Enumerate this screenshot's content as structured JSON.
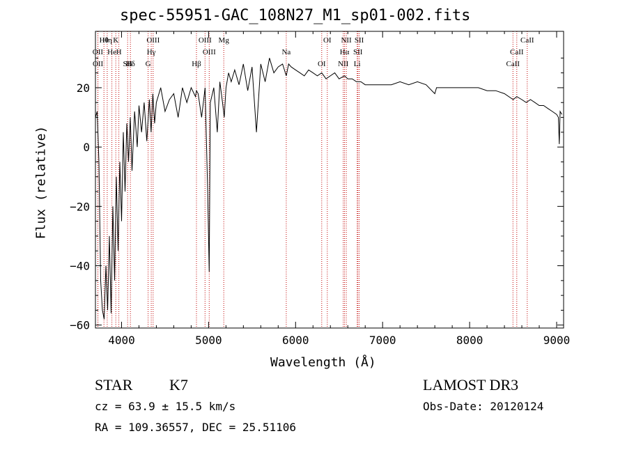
{
  "chart_data": {
    "type": "line",
    "title": "spec-55951-GAC_108N27_M1_sp01-002.fits",
    "xlabel": "Wavelength (Å)",
    "ylabel": "Flux (relative)",
    "xlim": [
      3700,
      9080
    ],
    "ylim": [
      -61,
      39
    ],
    "xticks": [
      4000,
      5000,
      6000,
      7000,
      8000,
      9000
    ],
    "yticks": [
      -60,
      -40,
      -20,
      0,
      20
    ],
    "series": [
      {
        "name": "flux",
        "x": [
          3700,
          3720,
          3740,
          3760,
          3780,
          3800,
          3820,
          3840,
          3860,
          3880,
          3900,
          3920,
          3940,
          3960,
          3980,
          4000,
          4020,
          4040,
          4060,
          4080,
          4100,
          4120,
          4150,
          4180,
          4200,
          4230,
          4260,
          4290,
          4320,
          4340,
          4360,
          4380,
          4400,
          4450,
          4500,
          4550,
          4600,
          4650,
          4700,
          4750,
          4800,
          4850,
          4861,
          4880,
          4920,
          4960,
          4990,
          5007,
          5020,
          5060,
          5100,
          5130,
          5160,
          5180,
          5200,
          5230,
          5260,
          5300,
          5350,
          5400,
          5450,
          5500,
          5550,
          5600,
          5650,
          5700,
          5750,
          5800,
          5850,
          5893,
          5920,
          5950,
          6000,
          6050,
          6100,
          6150,
          6200,
          6250,
          6300,
          6350,
          6400,
          6450,
          6500,
          6563,
          6600,
          6650,
          6700,
          6750,
          6800,
          6900,
          7000,
          7100,
          7200,
          7300,
          7400,
          7500,
          7600,
          7620,
          7650,
          7700,
          7800,
          7900,
          8000,
          8100,
          8200,
          8300,
          8400,
          8500,
          8542,
          8600,
          8650,
          8700,
          8750,
          8800,
          8850,
          8900,
          8950,
          9000,
          9020,
          9030,
          9040,
          9060
        ],
        "values": [
          10,
          12,
          -5,
          -45,
          -55,
          -58,
          -40,
          -55,
          -30,
          -56,
          -20,
          -45,
          -10,
          -35,
          -5,
          -25,
          5,
          -15,
          8,
          -5,
          10,
          -8,
          12,
          0,
          14,
          5,
          15,
          2,
          16,
          5,
          18,
          8,
          15,
          20,
          12,
          16,
          18,
          10,
          20,
          15,
          20,
          17,
          19,
          18,
          10,
          20,
          -15,
          -42,
          15,
          20,
          5,
          22,
          15,
          10,
          20,
          25,
          22,
          26,
          21,
          28,
          19,
          27,
          5,
          28,
          22,
          30,
          25,
          27,
          28,
          24,
          28,
          27,
          26,
          25,
          24,
          26,
          25,
          24,
          25,
          23,
          24,
          25,
          23,
          24,
          23,
          23,
          22,
          22,
          21,
          21,
          21,
          21,
          22,
          21,
          22,
          21,
          18,
          20,
          20,
          20,
          20,
          20,
          20,
          20,
          19,
          19,
          18,
          16,
          17,
          16,
          15,
          16,
          15,
          14,
          14,
          13,
          12,
          11,
          10,
          1,
          12,
          11
        ]
      }
    ],
    "lines": [
      {
        "label": "Hθ",
        "wl": 3798
      },
      {
        "label": "OII",
        "wl": 3727
      },
      {
        "label": "OII",
        "wl": 3729
      },
      {
        "label": "K",
        "wl": 3934
      },
      {
        "label": "He",
        "wl": 3889
      },
      {
        "label": "SII",
        "wl": 4070
      },
      {
        "label": "Hη",
        "wl": 3835
      },
      {
        "label": "H",
        "wl": 3969
      },
      {
        "label": "Hδ",
        "wl": 4102
      },
      {
        "label": "OIII",
        "wl": 4363
      },
      {
        "label": "Hγ",
        "wl": 4341
      },
      {
        "label": "G",
        "wl": 4305
      },
      {
        "label": "OIII",
        "wl": 4959
      },
      {
        "label": "OIII",
        "wl": 5007
      },
      {
        "label": "Hβ",
        "wl": 4861
      },
      {
        "label": "Mg",
        "wl": 5175
      },
      {
        "label": "Na",
        "wl": 5893
      },
      {
        "label": "OI",
        "wl": 6300
      },
      {
        "label": "OI",
        "wl": 6364
      },
      {
        "label": "Hα",
        "wl": 6563
      },
      {
        "label": "NII",
        "wl": 6548
      },
      {
        "label": "NII",
        "wl": 6583
      },
      {
        "label": "SII",
        "wl": 6716
      },
      {
        "label": "Li",
        "wl": 6708
      },
      {
        "label": "SII",
        "wl": 6731
      },
      {
        "label": "CaII",
        "wl": 8542
      },
      {
        "label": "CaII",
        "wl": 8498
      },
      {
        "label": "CaII",
        "wl": 8662
      }
    ]
  },
  "info": {
    "class": "STAR",
    "subclass": "K7",
    "survey": "LAMOST DR3",
    "redshift": "cz = 63.9 ± 15.5 km/s",
    "obs_date": "Obs-Date: 20120124",
    "coords": "RA = 109.36557, DEC =  25.51106"
  }
}
